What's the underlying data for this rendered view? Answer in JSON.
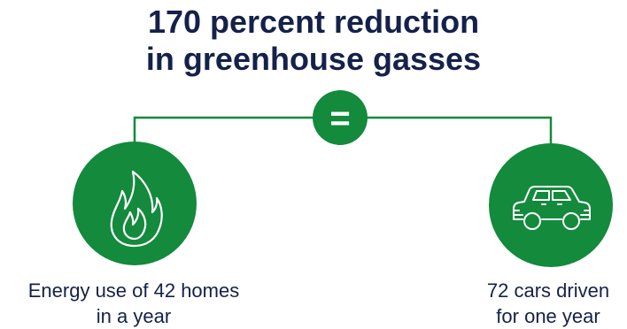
{
  "title": {
    "line1": "170 percent reduction",
    "line2": "in greenhouse gasses"
  },
  "equals_symbol": "=",
  "left": {
    "icon": "flame-icon",
    "caption_line1": "Energy use of 42 homes",
    "caption_line2": "in a year"
  },
  "right": {
    "icon": "car-icon",
    "caption_line1": "72 cars driven",
    "caption_line2": "for one year"
  },
  "colors": {
    "green": "#138a3c",
    "navy": "#14214a",
    "white": "#ffffff"
  }
}
